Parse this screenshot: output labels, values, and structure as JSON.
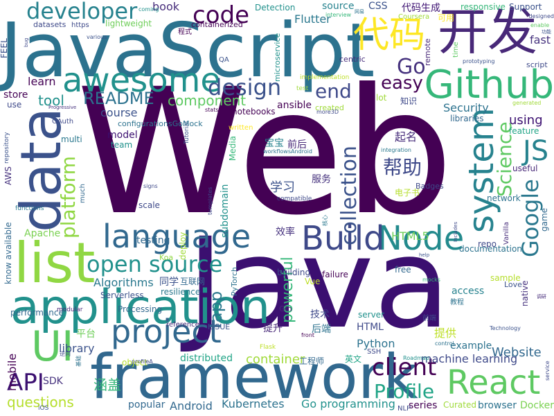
{
  "words": [
    {
      "text": "Web",
      "color": "#440154"
    },
    {
      "text": "Java",
      "color": "#3b0f70"
    },
    {
      "text": "JavaScript",
      "color": "#2c728e"
    },
    {
      "text": "framework",
      "color": "#31688e"
    },
    {
      "text": "application",
      "color": "#21918c"
    },
    {
      "text": "data",
      "color": "#3b528b"
    },
    {
      "text": "开发",
      "color": "#482878"
    },
    {
      "text": "Github",
      "color": "#35b779"
    },
    {
      "text": "language",
      "color": "#31688e"
    },
    {
      "text": "list",
      "color": "#90d743"
    },
    {
      "text": "project",
      "color": "#31688e"
    },
    {
      "text": "React",
      "color": "#5ec962"
    },
    {
      "text": "awesome",
      "color": "#21918c"
    },
    {
      "text": "代码",
      "color": "#fde725"
    },
    {
      "text": "system",
      "color": "#26828e"
    },
    {
      "text": "Node",
      "color": "#238a8d"
    },
    {
      "text": "Build",
      "color": "#3e4989"
    },
    {
      "text": "developer",
      "color": "#26828e"
    },
    {
      "text": "open source",
      "color": "#21918c"
    },
    {
      "text": "UI",
      "color": "#5ec962"
    },
    {
      "text": "API",
      "color": "#3b0f70"
    },
    {
      "text": "client",
      "color": "#440154"
    },
    {
      "text": "Google",
      "color": "#2a788e"
    },
    {
      "text": "Profile",
      "color": "#20a486"
    },
    {
      "text": "JS",
      "color": "#26828e"
    },
    {
      "text": "code",
      "color": "#440154"
    },
    {
      "text": "design",
      "color": "#3b528b"
    },
    {
      "text": "Science",
      "color": "#5ec962"
    },
    {
      "text": "platform",
      "color": "#90d743"
    },
    {
      "text": "collection",
      "color": "#3b528b"
    },
    {
      "text": "Go",
      "color": "#46327e"
    },
    {
      "text": "easy",
      "color": "#440154"
    },
    {
      "text": "end",
      "color": "#3e4989"
    },
    {
      "text": "帮助",
      "color": "#3e4989"
    },
    {
      "text": "Website",
      "color": "#31688e"
    },
    {
      "text": "README",
      "color": "#2c728e"
    },
    {
      "text": "component",
      "color": "#5ec962"
    },
    {
      "text": "app",
      "color": "#2a788e"
    },
    {
      "text": "questions",
      "color": "#b5de2b"
    },
    {
      "text": "container",
      "color": "#a0da39"
    },
    {
      "text": "powerful",
      "color": "#35b779"
    },
    {
      "text": "machine learning",
      "color": "#3e4989"
    },
    {
      "text": "Kubernetes",
      "color": "#2c728e"
    },
    {
      "text": "Go programming",
      "color": "#21918c"
    },
    {
      "text": "Android",
      "color": "#31688e"
    },
    {
      "text": "Algorithms",
      "color": "#2a788e"
    },
    {
      "text": "Security",
      "color": "#2c728e"
    },
    {
      "text": "using",
      "color": "#3b0f70"
    },
    {
      "text": "tool",
      "color": "#21918c"
    },
    {
      "text": "learn",
      "color": "#440154"
    },
    {
      "text": "course",
      "color": "#3b528b"
    },
    {
      "text": "book",
      "color": "#472d7b"
    },
    {
      "text": "source",
      "color": "#26828e"
    },
    {
      "text": "Flutter",
      "color": "#2a788e"
    },
    {
      "text": "fast",
      "color": "#46327e"
    },
    {
      "text": "HTML5",
      "color": "#6ece58"
    },
    {
      "text": "Python",
      "color": "#2c728e"
    },
    {
      "text": "library",
      "color": "#3b528b"
    },
    {
      "text": "mobile",
      "color": "#440154"
    },
    {
      "text": "distributed",
      "color": "#20a486"
    },
    {
      "text": "SDK",
      "color": "#46327e"
    },
    {
      "text": "popular",
      "color": "#31688e"
    },
    {
      "text": "series",
      "color": "#440154"
    },
    {
      "text": "browser",
      "color": "#2c728e"
    },
    {
      "text": "Docker",
      "color": "#7ad151"
    },
    {
      "text": "Curated",
      "color": "#9fda3a"
    },
    {
      "text": "NLP",
      "color": "#3e4989"
    },
    {
      "text": "学习",
      "color": "#3b528b"
    },
    {
      "text": "起名",
      "color": "#472d7b"
    },
    {
      "text": "前后",
      "color": "#482878"
    },
    {
      "text": "宝宝",
      "color": "#26828e"
    },
    {
      "text": "服务",
      "color": "#46327e"
    },
    {
      "text": "电子书",
      "color": "#b5de2b"
    },
    {
      "text": "效率",
      "color": "#46327e"
    },
    {
      "text": "同学",
      "color": "#3b528b"
    },
    {
      "text": "互联网",
      "color": "#31688e"
    },
    {
      "text": "技术",
      "color": "#3e4989"
    },
    {
      "text": "提升",
      "color": "#482878"
    },
    {
      "text": "后端",
      "color": "#2c728e"
    },
    {
      "text": "提供",
      "color": "#bddf26"
    },
    {
      "text": "工程师",
      "color": "#31688e"
    },
    {
      "text": "英文",
      "color": "#20a486"
    },
    {
      "text": "涵盖",
      "color": "#35b779"
    },
    {
      "text": "平台",
      "color": "#6ece58"
    },
    {
      "text": "代码生成",
      "color": "#3b0f70"
    },
    {
      "text": "可用",
      "color": "#fde725"
    },
    {
      "text": "Detection",
      "color": "#21918c"
    },
    {
      "text": "CSS",
      "color": "#3b528b"
    },
    {
      "text": "Support",
      "color": "#3b528b"
    },
    {
      "text": "responsive",
      "color": "#35b779"
    },
    {
      "text": "lightweight",
      "color": "#6ece58"
    },
    {
      "text": "datasets",
      "color": "#3e4989"
    },
    {
      "text": "https",
      "color": "#3e4989"
    },
    {
      "text": "containerized",
      "color": "#440154"
    },
    {
      "text": "程式",
      "color": "#440154"
    },
    {
      "text": "microservice",
      "color": "#21918c"
    },
    {
      "text": "Coursera",
      "color": "#a0da39"
    },
    {
      "text": "interview",
      "color": "#35b779"
    },
    {
      "text": "remote",
      "color": "#482878"
    },
    {
      "text": "time",
      "color": "#5ec962"
    },
    {
      "text": "centric",
      "color": "#472d7b"
    },
    {
      "text": "QA",
      "color": "#3b528b"
    },
    {
      "text": "script",
      "color": "#3e4989"
    },
    {
      "text": "prototyping",
      "color": "#3b528b"
    },
    {
      "text": "implementation",
      "color": "#bddf26"
    },
    {
      "text": "test",
      "color": "#9fda3a"
    },
    {
      "text": "lot",
      "color": "#a0da39"
    },
    {
      "text": "知识",
      "color": "#3e4989"
    },
    {
      "text": "created",
      "color": "#a0da39"
    },
    {
      "text": "ansible",
      "color": "#440154"
    },
    {
      "text": "libraries",
      "color": "#31688e"
    },
    {
      "text": "feature",
      "color": "#20a486"
    },
    {
      "text": "useful",
      "color": "#482878"
    },
    {
      "text": "network",
      "color": "#2c728e"
    },
    {
      "text": "Badges",
      "color": "#3e4989"
    },
    {
      "text": "Vanilla",
      "color": "#472d7b"
    },
    {
      "text": "game",
      "color": "#31688e"
    },
    {
      "text": "documentation",
      "color": "#2c728e"
    },
    {
      "text": "repo",
      "color": "#3e4989"
    },
    {
      "text": "sample",
      "color": "#b5de2b"
    },
    {
      "text": "Love",
      "color": "#3b528b"
    },
    {
      "text": "access",
      "color": "#26828e"
    },
    {
      "text": "native",
      "color": "#46327e"
    },
    {
      "text": "example",
      "color": "#2c728e"
    },
    {
      "text": "free",
      "color": "#31688e"
    },
    {
      "text": "Vue",
      "color": "#bddf26"
    },
    {
      "text": "server",
      "color": "#21918c"
    },
    {
      "text": "Gin",
      "color": "#482878"
    },
    {
      "text": "HTML",
      "color": "#3e4989"
    },
    {
      "text": "PyTorch",
      "color": "#2c728e"
    },
    {
      "text": "building",
      "color": "#3e4989"
    },
    {
      "text": "failure",
      "color": "#440154"
    },
    {
      "text": "subdomain",
      "color": "#21918c"
    },
    {
      "text": "deploy",
      "color": "#a0da39"
    },
    {
      "text": "testing",
      "color": "#31688e"
    },
    {
      "text": "scale",
      "color": "#3e4989"
    },
    {
      "text": "Apache",
      "color": "#7ad151"
    },
    {
      "text": "much",
      "color": "#31688e"
    },
    {
      "text": "know available",
      "color": "#31688e"
    },
    {
      "text": "performance",
      "color": "#31688e"
    },
    {
      "text": "Serverless",
      "color": "#3b528b"
    },
    {
      "text": "resilience",
      "color": "#2a788e"
    },
    {
      "text": "Processing",
      "color": "#31688e"
    },
    {
      "text": "reference",
      "color": "#472d7b"
    },
    {
      "text": "ISSUE",
      "color": "#3b528b"
    },
    {
      "text": "written",
      "color": "#fde725"
    },
    {
      "text": "Media",
      "color": "#35b779"
    },
    {
      "text": "notebooks",
      "color": "#440154"
    },
    {
      "text": "model",
      "color": "#3b0f70"
    },
    {
      "text": "team",
      "color": "#21918c"
    },
    {
      "text": "multi",
      "color": "#2a788e"
    },
    {
      "text": "store",
      "color": "#440154"
    },
    {
      "text": "use",
      "color": "#3e4989"
    },
    {
      "text": "OAuth",
      "color": "#3e4989"
    },
    {
      "text": "AWS",
      "color": "#46327e"
    },
    {
      "text": "FEEL",
      "color": "#3b528b"
    },
    {
      "text": "functions",
      "color": "#2a788e"
    },
    {
      "text": "modular",
      "color": "#482878"
    },
    {
      "text": "Flask",
      "color": "#bddf26"
    },
    {
      "text": "front",
      "color": "#440154"
    },
    {
      "text": "SSH",
      "color": "#3e4989"
    },
    {
      "text": "Roadmap",
      "color": "#21918c"
    },
    {
      "text": "object",
      "color": "#b5de2b"
    },
    {
      "text": "iOS",
      "color": "#3b528b"
    },
    {
      "text": "Technology",
      "color": "#3b528b"
    },
    {
      "text": "mocks",
      "color": "#35b779"
    },
    {
      "text": "service",
      "color": "#3e4989"
    },
    {
      "text": "Progressive",
      "color": "#46327e"
    },
    {
      "text": "Tutorial",
      "color": "#3b528b"
    },
    {
      "text": "templates",
      "color": "#3e4989"
    },
    {
      "text": "repository",
      "color": "#3b528b"
    },
    {
      "text": "integration",
      "color": "#2a788e"
    },
    {
      "text": "workflowsAndroid",
      "color": "#2c728e"
    },
    {
      "text": "compatible",
      "color": "#3e4989"
    },
    {
      "text": "generated",
      "color": "#a0da39"
    },
    {
      "text": "designed",
      "color": "#3e4989"
    },
    {
      "text": "enable",
      "color": "#5ec962"
    },
    {
      "text": "coming",
      "color": "#21918c"
    },
    {
      "text": "bug",
      "color": "#3e4989"
    },
    {
      "text": "various",
      "color": "#3b528b"
    },
    {
      "text": "Koa",
      "color": "#90d743"
    },
    {
      "text": "stats",
      "color": "#440154"
    },
    {
      "text": "more3D",
      "color": "#3e4989"
    },
    {
      "text": "profileA",
      "color": "#3e4989"
    },
    {
      "text": "signs",
      "color": "#3e4989"
    },
    {
      "text": "help",
      "color": "#3b528b"
    },
    {
      "text": "control",
      "color": "#2c728e"
    },
    {
      "text": "Includes",
      "color": "#3e4989"
    },
    {
      "text": "configurationsGoMock",
      "color": "#2c728e"
    },
    {
      "text": "前端",
      "color": "#3e4989"
    },
    {
      "text": "教程",
      "color": "#2c728e"
    },
    {
      "text": "功能",
      "color": "#3b528b"
    },
    {
      "text": "网易",
      "color": "#2c728e"
    },
    {
      "text": "调研",
      "color": "#472d7b"
    },
    {
      "text": "核心",
      "color": "#2a788e"
    },
    {
      "text": "逆向",
      "color": "#3e4989"
    },
    {
      "text": "基础",
      "color": "#2c728e"
    },
    {
      "text": "关注",
      "color": "#3e4989"
    }
  ]
}
